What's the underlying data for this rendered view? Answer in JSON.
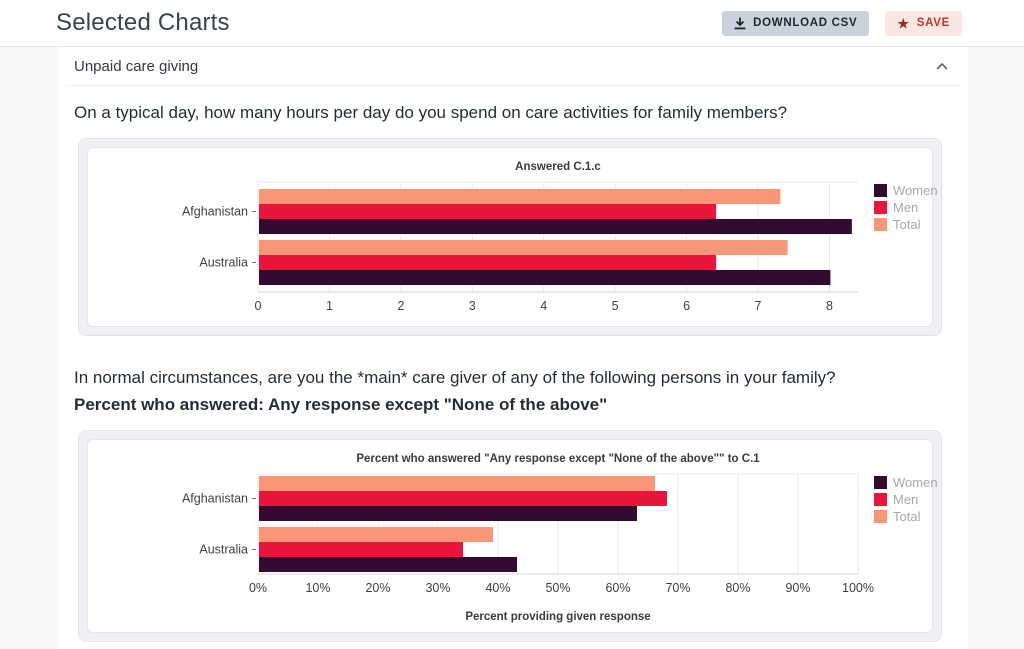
{
  "header": {
    "title": "Selected Charts",
    "download_button": "DOWNLOAD CSV",
    "save_button": "SAVE"
  },
  "accordion": {
    "title": "Unpaid care giving",
    "state": "expanded"
  },
  "questions": [
    {
      "text": "On a typical day, how many hours per day do you spend on care activities for family members?"
    },
    {
      "text": "In normal circumstances, are you the *main* care giver of any of the following persons in your family?",
      "subtitle": "Percent who answered: Any response except \"None of the above\""
    }
  ],
  "colors": {
    "women": "#330a30",
    "men": "#e9153b",
    "total": "#f99678",
    "legend_text": "#a8a8a8",
    "axis_text": "#3f3f3f",
    "grid": "#e9e9e9"
  },
  "chart_data": [
    {
      "type": "bar",
      "orientation": "horizontal",
      "title": "Answered C.1.c",
      "categories": [
        "Afghanistan",
        "Australia"
      ],
      "series": [
        {
          "name": "Women",
          "color": "#330a30",
          "values": [
            8.3,
            8.0
          ]
        },
        {
          "name": "Men",
          "color": "#e9153b",
          "values": [
            6.4,
            6.4
          ]
        },
        {
          "name": "Total",
          "color": "#f99678",
          "values": [
            7.3,
            7.4
          ]
        }
      ],
      "xlim": [
        0,
        8.4
      ],
      "xticks": [
        0,
        1,
        2,
        3,
        4,
        5,
        6,
        7,
        8
      ],
      "xtick_labels": [
        "0",
        "1",
        "2",
        "3",
        "4",
        "5",
        "6",
        "7",
        "8"
      ],
      "xlabel": "",
      "legend_position": "right",
      "grid": true
    },
    {
      "type": "bar",
      "orientation": "horizontal",
      "title": "Percent who answered \"Any response except \"None of the above\"\" to C.1",
      "categories": [
        "Afghanistan",
        "Australia"
      ],
      "series": [
        {
          "name": "Women",
          "color": "#330a30",
          "values": [
            63,
            43
          ]
        },
        {
          "name": "Men",
          "color": "#e9153b",
          "values": [
            68,
            34
          ]
        },
        {
          "name": "Total",
          "color": "#f99678",
          "values": [
            66,
            39
          ]
        }
      ],
      "xlim": [
        0,
        100
      ],
      "xticks": [
        0,
        10,
        20,
        30,
        40,
        50,
        60,
        70,
        80,
        90,
        100
      ],
      "xtick_labels": [
        "0%",
        "10%",
        "20%",
        "30%",
        "40%",
        "50%",
        "60%",
        "70%",
        "80%",
        "90%",
        "100%"
      ],
      "xlabel": "Percent providing given response",
      "legend_position": "right",
      "grid": true
    }
  ]
}
